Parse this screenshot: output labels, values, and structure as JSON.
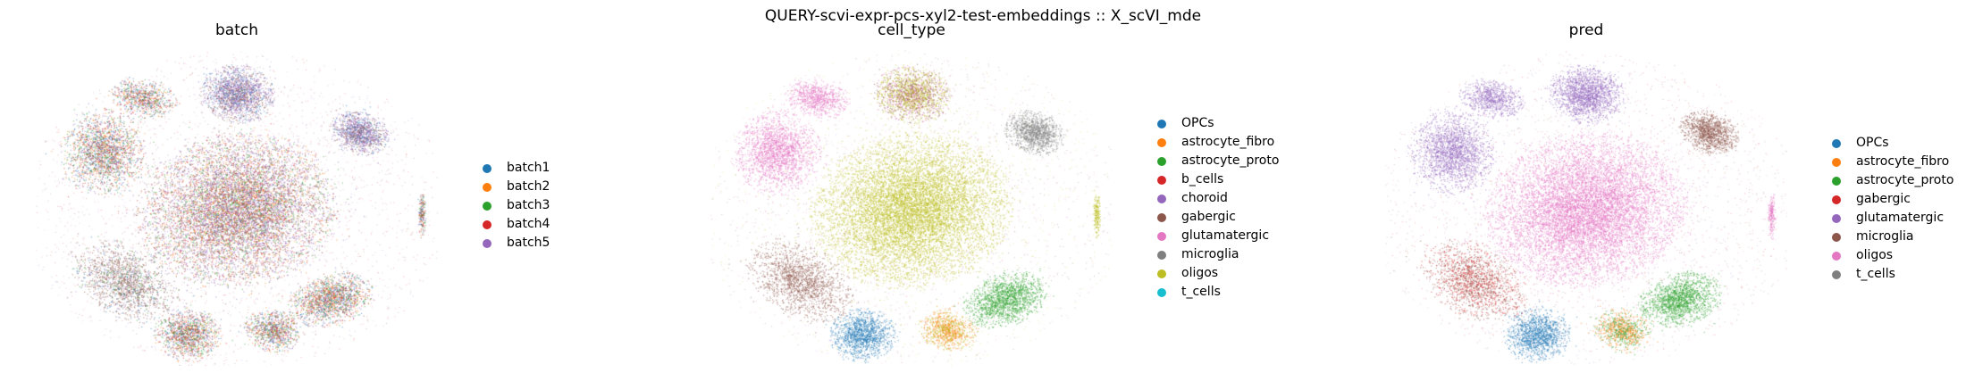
{
  "suptitle": "QUERY-scvi-expr-pcs-xyl2-test-embeddings :: X_scVI_mde",
  "chart_data": [
    {
      "type": "scatter",
      "title": "batch",
      "legend_position": "right",
      "axes": "off",
      "legend": [
        {
          "name": "batch1",
          "color": "#1f77b4"
        },
        {
          "name": "batch2",
          "color": "#ff7f0e"
        },
        {
          "name": "batch3",
          "color": "#2ca02c"
        },
        {
          "name": "batch4",
          "color": "#d62728"
        },
        {
          "name": "batch5",
          "color": "#9467bd"
        }
      ]
    },
    {
      "type": "scatter",
      "title": "cell_type",
      "legend_position": "right",
      "axes": "off",
      "legend": [
        {
          "name": "OPCs",
          "color": "#1f77b4"
        },
        {
          "name": "astrocyte_fibro",
          "color": "#ff7f0e"
        },
        {
          "name": "astrocyte_proto",
          "color": "#2ca02c"
        },
        {
          "name": "b_cells",
          "color": "#d62728"
        },
        {
          "name": "choroid",
          "color": "#9467bd"
        },
        {
          "name": "gabergic",
          "color": "#8c564b"
        },
        {
          "name": "glutamatergic",
          "color": "#e377c2"
        },
        {
          "name": "microglia",
          "color": "#7f7f7f"
        },
        {
          "name": "oligos",
          "color": "#bcbd22"
        },
        {
          "name": "t_cells",
          "color": "#17becf"
        }
      ]
    },
    {
      "type": "scatter",
      "title": "pred",
      "legend_position": "right",
      "axes": "off",
      "legend": [
        {
          "name": "OPCs",
          "color": "#1f77b4"
        },
        {
          "name": "astrocyte_fibro",
          "color": "#ff7f0e"
        },
        {
          "name": "astrocyte_proto",
          "color": "#2ca02c"
        },
        {
          "name": "gabergic",
          "color": "#d62728"
        },
        {
          "name": "glutamatergic",
          "color": "#9467bd"
        },
        {
          "name": "microglia",
          "color": "#8c564b"
        },
        {
          "name": "oligos",
          "color": "#e377c2"
        },
        {
          "name": "t_cells",
          "color": "#7f7f7f"
        }
      ]
    }
  ]
}
